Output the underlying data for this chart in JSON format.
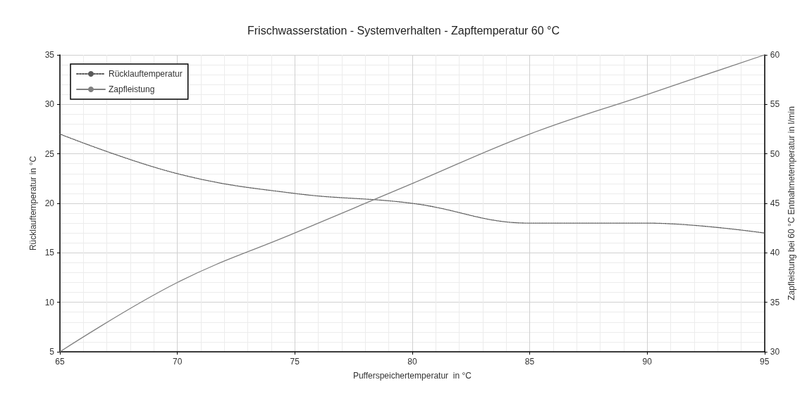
{
  "chart_data": {
    "type": "line",
    "title": "Frischwasserstation - Systemverhalten - Zapftemperatur 60 °C",
    "xlabel": "Pufferspeichertemperatur  in °C",
    "ylabel": "Rücklauftemperatur in °C",
    "y2label": "Zapfleistung bei 60 °C Entnahmetemperatur in l/min",
    "x": [
      65,
      70,
      75,
      80,
      85,
      90,
      95
    ],
    "series": [
      {
        "name": "Rücklauftemperatur",
        "color": "#595959",
        "line_style": "dotted",
        "values": [
          27,
          23,
          21,
          20,
          18,
          18,
          17
        ]
      },
      {
        "name": "Zapfleistung",
        "color": "#808080",
        "line_style": "solid",
        "axis": "y2",
        "values": [
          30,
          37,
          42,
          47,
          52,
          56,
          60
        ]
      }
    ],
    "xlim": [
      65,
      95
    ],
    "xticks": [
      65,
      70,
      75,
      80,
      85,
      90,
      95
    ],
    "ylim": [
      5,
      35
    ],
    "yticks": [
      5,
      10,
      15,
      20,
      25,
      30,
      35
    ],
    "y2lim": [
      30,
      60
    ],
    "y2ticks": [
      30,
      35,
      40,
      45,
      50,
      55,
      60
    ],
    "grid": true,
    "legend": "top left",
    "marker": "none"
  }
}
